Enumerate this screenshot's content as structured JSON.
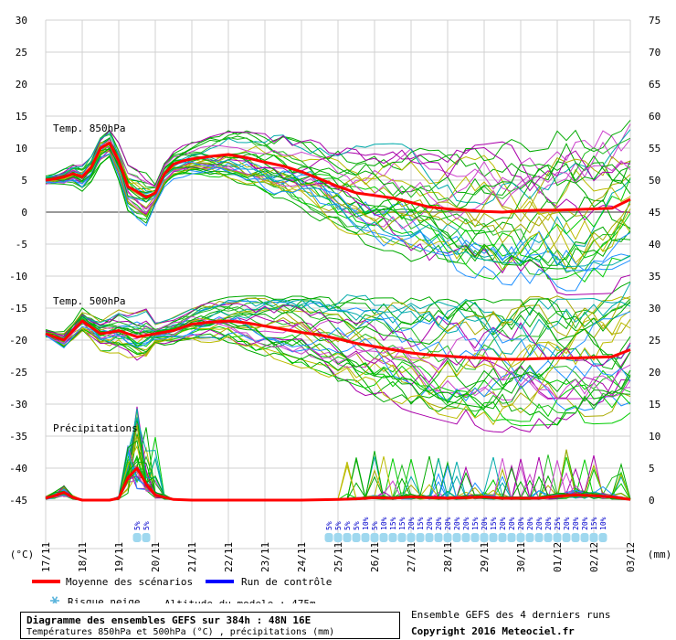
{
  "chart_data": {
    "type": "line",
    "left_axis": {
      "unit": "(°C)",
      "ticks": [
        30,
        25,
        20,
        15,
        10,
        5,
        0,
        -5,
        -10,
        -15,
        -20,
        -25,
        -30,
        -35,
        -40,
        -45
      ]
    },
    "right_axis": {
      "unit": "(mm)",
      "ticks": [
        75,
        70,
        65,
        60,
        55,
        50,
        45,
        40,
        35,
        30,
        25,
        20,
        15,
        10,
        5,
        0
      ]
    },
    "x_labels": [
      "17/11",
      "18/11",
      "19/11",
      "20/11",
      "21/11",
      "22/11",
      "23/11",
      "24/11",
      "25/11",
      "26/11",
      "27/11",
      "28/11",
      "29/11",
      "30/11",
      "01/12",
      "02/12",
      "03/12"
    ],
    "grid": true,
    "panels": [
      {
        "label": "Temp. 850hPa"
      },
      {
        "label": "Temp. 500hPa"
      },
      {
        "label": "Précipitations"
      }
    ],
    "series": [
      {
        "name": "Moyenne des scénarios",
        "panel": "Temp. 850hPa",
        "color": "#ff0000",
        "x_days": [
          0,
          0.25,
          0.5,
          0.75,
          1,
          1.25,
          1.5,
          1.75,
          2,
          2.25,
          2.5,
          2.75,
          3,
          3.25,
          3.5,
          3.75,
          4,
          4.5,
          5,
          5.5,
          6,
          6.5,
          7,
          7.5,
          8,
          8.5,
          9,
          9.5,
          10,
          10.5,
          11,
          11.5,
          12,
          12.5,
          13,
          13.5,
          14,
          14.5,
          15,
          15.5,
          16
        ],
        "values": [
          5,
          5.2,
          5.5,
          6,
          5.5,
          7,
          10,
          10.8,
          8,
          4,
          3.2,
          2.3,
          3,
          6,
          7.5,
          8,
          8.3,
          8.7,
          9,
          8.5,
          7.8,
          7.2,
          6.3,
          5.2,
          4,
          3,
          2.6,
          2.2,
          1.5,
          0.8,
          0.5,
          0.3,
          0.1,
          0,
          0.2,
          0.3,
          0.3,
          0.4,
          0.5,
          0.6,
          2
        ]
      },
      {
        "name": "Moyenne des scénarios",
        "panel": "Temp. 500hPa",
        "color": "#ff0000",
        "x_days": [
          0,
          0.25,
          0.5,
          0.75,
          1,
          1.25,
          1.5,
          1.75,
          2,
          2.5,
          3,
          3.5,
          4,
          4.5,
          5,
          5.5,
          6,
          6.5,
          7,
          7.5,
          8,
          8.5,
          9,
          9.5,
          10,
          10.5,
          11,
          11.5,
          12,
          12.5,
          13,
          13.5,
          14,
          14.5,
          15,
          15.5,
          16
        ],
        "values": [
          -19,
          -19.5,
          -20,
          -18.5,
          -17,
          -18,
          -19,
          -18.8,
          -18.5,
          -19.5,
          -19,
          -18.5,
          -17.5,
          -17.2,
          -17,
          -17.3,
          -17.8,
          -18.3,
          -18.8,
          -19.2,
          -19.8,
          -20.5,
          -21,
          -21.5,
          -22,
          -22.3,
          -22.5,
          -22.7,
          -22.8,
          -23,
          -23,
          -22.9,
          -22.8,
          -22.8,
          -22.7,
          -22.6,
          -21.5
        ]
      },
      {
        "name": "Moyenne des scénarios",
        "panel": "Précipitations",
        "color": "#ff0000",
        "x_days": [
          0,
          0.25,
          0.5,
          0.75,
          1,
          1.25,
          1.5,
          1.75,
          2,
          2.25,
          2.5,
          2.75,
          3,
          3.5,
          4,
          5,
          6,
          7,
          8,
          8.5,
          9,
          9.5,
          10,
          10.5,
          11,
          11.5,
          12,
          12.5,
          13,
          13.5,
          14,
          14.5,
          15,
          15.5,
          16
        ],
        "values": [
          0.3,
          0.7,
          1.2,
          0.4,
          0,
          0,
          0,
          0,
          0.3,
          3.5,
          5,
          2.5,
          0.8,
          0.1,
          0,
          0,
          0,
          0,
          0.1,
          0.2,
          0.4,
          0.3,
          0.5,
          0.4,
          0.3,
          0.4,
          0.5,
          0.3,
          0.3,
          0.3,
          0.6,
          0.8,
          0.7,
          0.5,
          0.1
        ]
      }
    ],
    "snow_risk": {
      "groups": [
        {
          "start_day": 2.5,
          "values": [
            "5%",
            "5%"
          ]
        },
        {
          "start_day": 7.75,
          "values": [
            "5%",
            "5%",
            "5%",
            "5%",
            "10%",
            "5%",
            "10%",
            "15%",
            "15%",
            "20%",
            "15%",
            "20%",
            "20%",
            "20%",
            "20%",
            "20%",
            "15%",
            "20%",
            "15%",
            "20%",
            "20%",
            "20%",
            "20%",
            "20%",
            "20%",
            "25%",
            "20%",
            "20%",
            "20%",
            "15%",
            "10%"
          ]
        }
      ]
    }
  },
  "legend": {
    "mean": "Moyenne des scénarios",
    "control": "Run de contrôle",
    "snow": "Risque neige",
    "altitude": "Altitude du modele : 475m",
    "mean_color": "#ff0000",
    "control_color": "#0000ff"
  },
  "footer": {
    "title": "Diagramme des ensembles GEFS sur 384h : 48N 16E",
    "subtitle": "Températures 850hPa et 500hPa (°C) , précipitations (mm)",
    "runs": "Ensemble GEFS des 4 derniers runs",
    "copyright": "Copyright 2016 Meteociel.fr"
  }
}
